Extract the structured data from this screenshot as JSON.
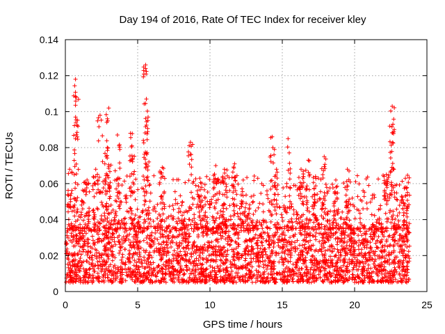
{
  "chart_data": {
    "type": "scatter",
    "title": "Day 194 of 2016, Rate Of TEC Index for receiver kley",
    "xlabel": "GPS time / hours",
    "ylabel": "ROTI / TECUs",
    "xlim": [
      0,
      25
    ],
    "ylim": [
      0,
      0.14
    ],
    "x_ticks": [
      0,
      5,
      10,
      15,
      20,
      25
    ],
    "x_tick_labels": [
      "0",
      "5",
      "10",
      "15",
      "20",
      "25"
    ],
    "y_ticks": [
      0,
      0.02,
      0.04,
      0.06,
      0.08,
      0.1,
      0.12,
      0.14
    ],
    "y_tick_labels": [
      "0",
      "0.02",
      "0.04",
      "0.06",
      "0.08",
      "0.1",
      "0.12",
      "0.14"
    ],
    "grid": true,
    "marker": "plus",
    "color": "#ff0000",
    "x_range_of_data": [
      0.05,
      23.8
    ],
    "typical_range": [
      0.005,
      0.035
    ],
    "peaks": [
      {
        "x": 0.3,
        "y": 0.068
      },
      {
        "x": 0.7,
        "y": 0.118
      },
      {
        "x": 0.75,
        "y": 0.108
      },
      {
        "x": 1.5,
        "y": 0.062
      },
      {
        "x": 2.1,
        "y": 0.068
      },
      {
        "x": 2.4,
        "y": 0.098
      },
      {
        "x": 2.9,
        "y": 0.08
      },
      {
        "x": 3.0,
        "y": 0.102
      },
      {
        "x": 3.6,
        "y": 0.087
      },
      {
        "x": 4.5,
        "y": 0.088
      },
      {
        "x": 4.6,
        "y": 0.081
      },
      {
        "x": 5.55,
        "y": 0.126
      },
      {
        "x": 5.6,
        "y": 0.107
      },
      {
        "x": 5.7,
        "y": 0.095
      },
      {
        "x": 6.7,
        "y": 0.069
      },
      {
        "x": 8.65,
        "y": 0.083
      },
      {
        "x": 9.3,
        "y": 0.063
      },
      {
        "x": 10.4,
        "y": 0.07
      },
      {
        "x": 11.0,
        "y": 0.068
      },
      {
        "x": 11.7,
        "y": 0.071
      },
      {
        "x": 12.3,
        "y": 0.062
      },
      {
        "x": 14.3,
        "y": 0.086
      },
      {
        "x": 14.6,
        "y": 0.068
      },
      {
        "x": 15.4,
        "y": 0.085
      },
      {
        "x": 16.3,
        "y": 0.068
      },
      {
        "x": 16.8,
        "y": 0.073
      },
      {
        "x": 17.3,
        "y": 0.064
      },
      {
        "x": 17.9,
        "y": 0.075
      },
      {
        "x": 18.7,
        "y": 0.062
      },
      {
        "x": 19.5,
        "y": 0.068
      },
      {
        "x": 22.2,
        "y": 0.065
      },
      {
        "x": 22.6,
        "y": 0.103
      },
      {
        "x": 22.65,
        "y": 0.093
      },
      {
        "x": 23.5,
        "y": 0.058
      }
    ]
  }
}
